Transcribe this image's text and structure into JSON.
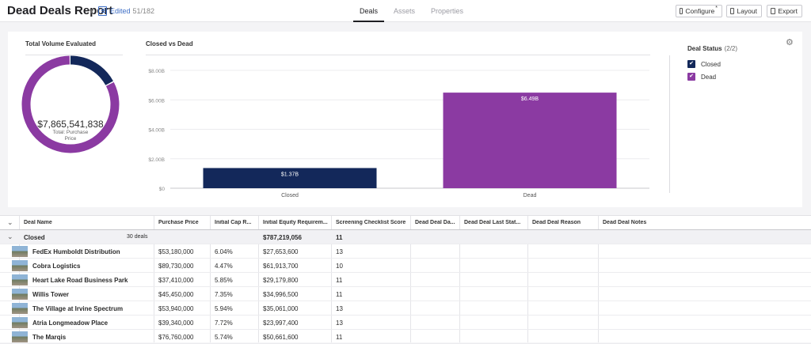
{
  "header": {
    "title": "Dead Deals Report",
    "edited_label": "Edited",
    "edited_count": "51/182",
    "tabs": [
      {
        "label": "Deals",
        "active": true
      },
      {
        "label": "Assets",
        "active": false
      },
      {
        "label": "Properties",
        "active": false
      }
    ],
    "buttons": {
      "configure": "Configure",
      "configure_marker": "*",
      "layout": "Layout",
      "export": "Export"
    }
  },
  "summary": {
    "total_title": "Total Volume Evaluated",
    "total_value": "$7,865,541,838",
    "total_sub": "Total: Purchase Price",
    "chart_title": "Closed vs Dead"
  },
  "chart_data": {
    "type": "bar",
    "title": "Closed vs Dead",
    "categories": [
      "Closed",
      "Dead"
    ],
    "values": [
      1.37,
      6.49
    ],
    "value_labels": [
      "$1.37B",
      "$6.49B"
    ],
    "colors": [
      "#13285a",
      "#8b3aa2"
    ],
    "ylim": [
      0,
      8
    ],
    "y_ticks": [
      "$0",
      "$2.00B",
      "$4.00B",
      "$6.00B",
      "$8.00B"
    ],
    "grid": true
  },
  "donut": {
    "segments": [
      {
        "name": "Closed",
        "value": 1.37,
        "color": "#13285a"
      },
      {
        "name": "Dead",
        "value": 6.49,
        "color": "#8b3aa2"
      }
    ]
  },
  "legend": {
    "title": "Deal Status",
    "count": "(2/2)",
    "items": [
      {
        "label": "Closed",
        "color": "#13285a",
        "checked": true
      },
      {
        "label": "Dead",
        "color": "#8b3aa2",
        "checked": true
      }
    ]
  },
  "table": {
    "columns": [
      "Deal Name",
      "Purchase Price",
      "Initial Cap R...",
      "Initial Equity Requirem...",
      "Screening Checklist Score",
      "Dead Deal Da...",
      "Dead Deal Last Stat...",
      "Dead Deal Reason",
      "Dead Deal Notes"
    ],
    "group": {
      "label": "Closed",
      "count": "30 deals",
      "equity": "$787,219,056",
      "score": "11"
    },
    "rows": [
      {
        "name": "FedEx Humboldt Distribution",
        "price": "$53,180,000",
        "cap": "6.04%",
        "equity": "$27,653,600",
        "score": "13"
      },
      {
        "name": "Cobra Logistics",
        "price": "$89,730,000",
        "cap": "4.47%",
        "equity": "$61,913,700",
        "score": "10"
      },
      {
        "name": "Heart Lake Road Business Park",
        "price": "$37,410,000",
        "cap": "5.85%",
        "equity": "$29,179,800",
        "score": "11"
      },
      {
        "name": "Willis Tower",
        "price": "$45,450,000",
        "cap": "7.35%",
        "equity": "$34,996,500",
        "score": "11"
      },
      {
        "name": "The Village at Irvine Spectrum",
        "price": "$53,940,000",
        "cap": "5.94%",
        "equity": "$35,061,000",
        "score": "13"
      },
      {
        "name": "Atria Longmeadow Place",
        "price": "$39,340,000",
        "cap": "7.72%",
        "equity": "$23,997,400",
        "score": "13"
      },
      {
        "name": "The Marqis",
        "price": "$76,760,000",
        "cap": "5.74%",
        "equity": "$50,661,600",
        "score": "11"
      }
    ]
  }
}
